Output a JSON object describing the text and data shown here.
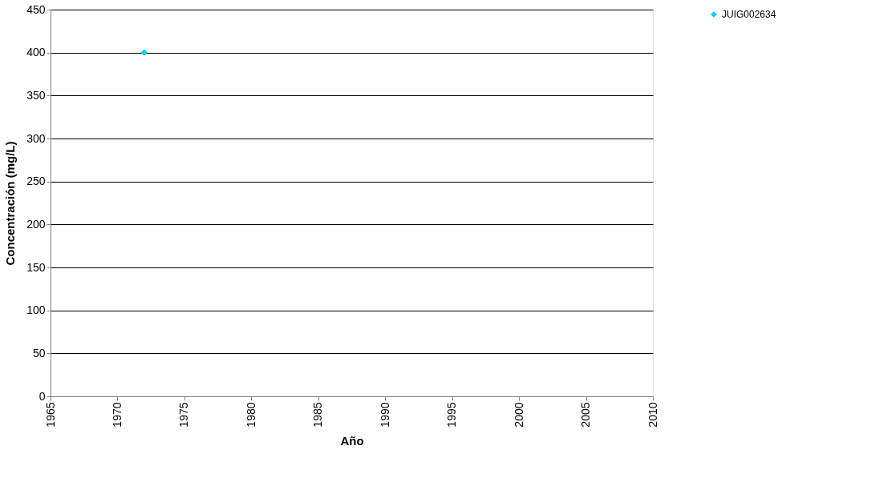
{
  "chart_data": {
    "type": "scatter",
    "xlabel": "Año",
    "ylabel": "Concentración (mg/L)",
    "x": [
      1972
    ],
    "series": [
      {
        "name": "JUIG002634",
        "color": "#00ccff",
        "values": [
          400
        ]
      }
    ],
    "xlim": [
      1965,
      2010
    ],
    "xticks": [
      1965,
      1970,
      1975,
      1980,
      1985,
      1990,
      1995,
      2000,
      2005,
      2010
    ],
    "ylim": [
      0,
      450
    ],
    "yticks": [
      0,
      50,
      100,
      150,
      200,
      250,
      300,
      350,
      400,
      450
    ],
    "grid": "y",
    "legend": "right",
    "marker": "diamond"
  }
}
